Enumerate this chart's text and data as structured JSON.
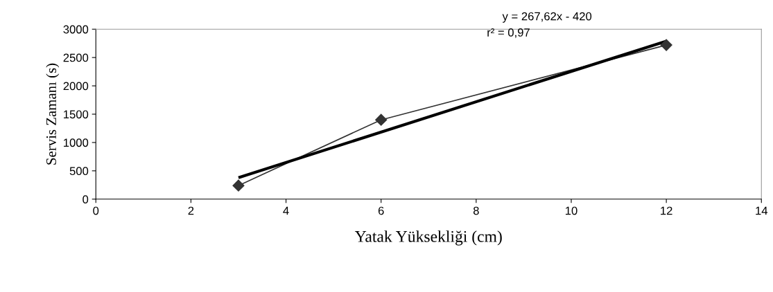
{
  "chart_data": {
    "type": "line",
    "xlabel": "Yatak Yüksekliği (cm)",
    "ylabel": "Servis Zamanı (s)",
    "xlim": [
      0,
      14
    ],
    "xticks": [
      0,
      2,
      4,
      6,
      8,
      10,
      12,
      14
    ],
    "ylim": [
      0,
      3000
    ],
    "yticks": [
      0,
      500,
      1000,
      1500,
      2000,
      2500,
      3000
    ],
    "grid": false,
    "legend": false,
    "series": [
      {
        "color": "#333333",
        "x": [
          3,
          6,
          12
        ],
        "values": [
          240,
          1400,
          2720
        ],
        "marker": "diamond",
        "line_style": "solid"
      },
      {
        "color": "#000000",
        "x": [
          3,
          12
        ],
        "values": [
          380,
          2790
        ],
        "marker": "none",
        "line_style": "solid"
      }
    ],
    "annotations": [
      "y = 267,62x - 420",
      "r² = 0,97"
    ]
  }
}
